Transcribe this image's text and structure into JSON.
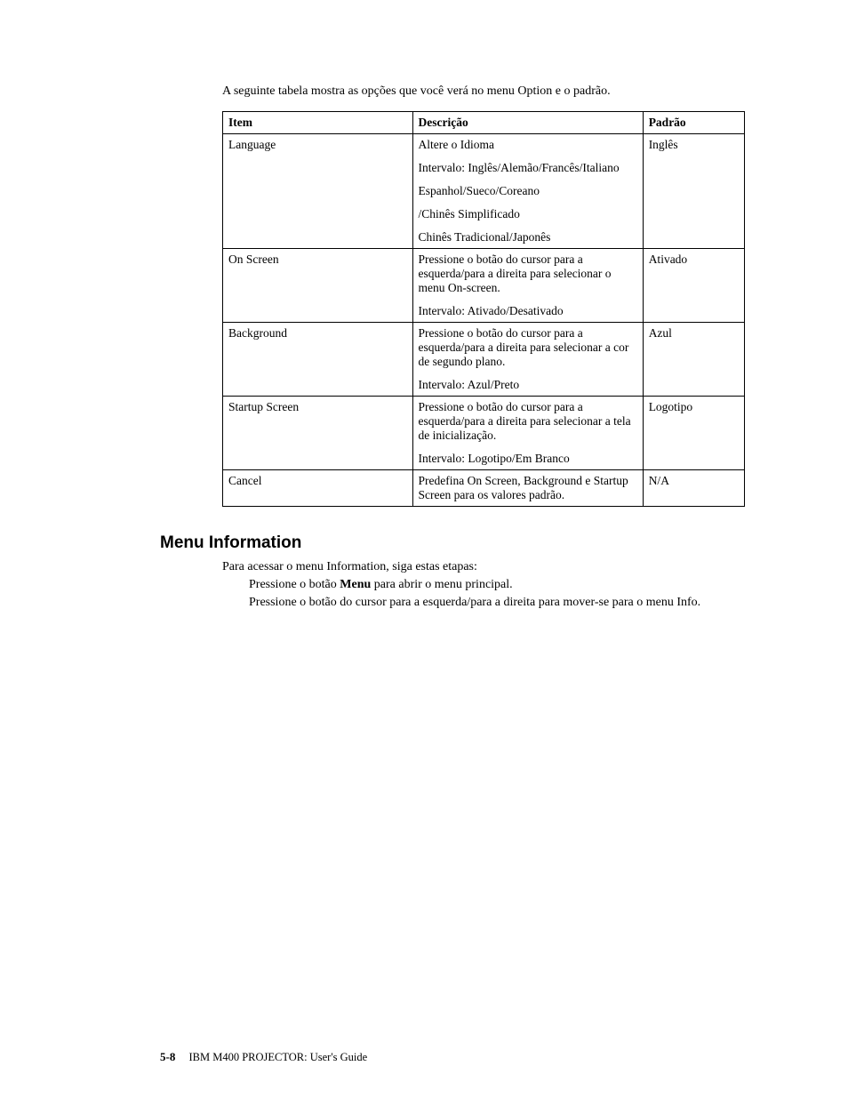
{
  "intro": "A seguinte tabela mostra as opções que você verá no menu Option e o padrão.",
  "table": {
    "headers": {
      "item": "Item",
      "desc": "Descrição",
      "def": "Padrão"
    },
    "rows": [
      {
        "item": "Language",
        "desc": [
          "Altere o Idioma",
          "Intervalo: Inglês/Alemão/Francês/Italiano",
          "Espanhol/Sueco/Coreano",
          "/Chinês Simplificado",
          "Chinês Tradicional/Japonês"
        ],
        "def": "Inglês"
      },
      {
        "item": "On Screen",
        "desc": [
          "Pressione o botão do cursor para a esquerda/para a direita para selecionar o menu On-screen.",
          "Intervalo: Ativado/Desativado"
        ],
        "def": "Ativado"
      },
      {
        "item": "Background",
        "desc": [
          "Pressione o botão do cursor para a esquerda/para a direita para selecionar a cor de segundo plano.",
          "Intervalo: Azul/Preto"
        ],
        "def": "Azul"
      },
      {
        "item": "Startup Screen",
        "desc": [
          "Pressione o botão do cursor para a esquerda/para a direita para selecionar a tela de inicialização.",
          "Intervalo: Logotipo/Em Branco"
        ],
        "def": "Logotipo"
      },
      {
        "item": "Cancel",
        "desc": [
          "Predefina On Screen, Background e Startup Screen para os valores padrão."
        ],
        "def": "N/A"
      }
    ]
  },
  "section_title": "Menu Information",
  "section_intro": "Para acessar o menu Information, siga estas etapas:",
  "step1_a": "Pressione o botão ",
  "step1_b": "Menu",
  "step1_c": " para abrir o menu principal.",
  "step2": "Pressione o botão do cursor para a esquerda/para a direita para mover-se para o menu Info.",
  "footer": {
    "page": "5-8",
    "title": "IBM M400 PROJECTOR: User's Guide"
  }
}
